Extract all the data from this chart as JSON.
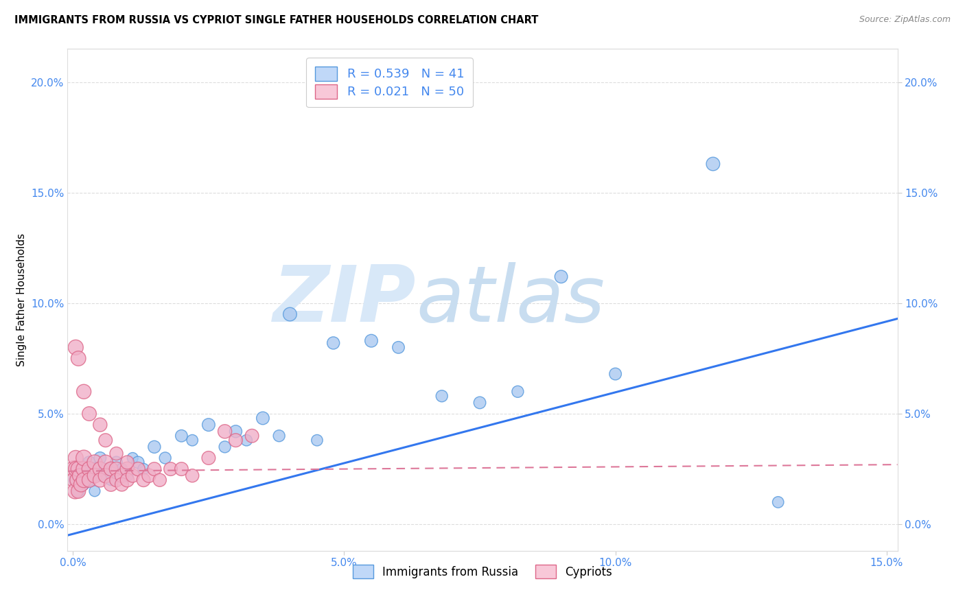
{
  "title": "IMMIGRANTS FROM RUSSIA VS CYPRIOT SINGLE FATHER HOUSEHOLDS CORRELATION CHART",
  "source": "Source: ZipAtlas.com",
  "ylabel": "Single Father Households",
  "xlim": [
    -0.001,
    0.152
  ],
  "ylim": [
    -0.012,
    0.215
  ],
  "xticks": [
    0.0,
    0.05,
    0.1,
    0.15
  ],
  "yticks": [
    0.0,
    0.05,
    0.1,
    0.15,
    0.2
  ],
  "xticklabels": [
    "0.0%",
    "5.0%",
    "10.0%",
    "15.0%"
  ],
  "yticklabels": [
    "0.0%",
    "5.0%",
    "10.0%",
    "15.0%",
    "20.0%"
  ],
  "blue_R": 0.539,
  "blue_N": 41,
  "pink_R": 0.021,
  "pink_N": 50,
  "blue_color": "#aac8f0",
  "blue_edge": "#5599dd",
  "pink_color": "#f0b0c8",
  "pink_edge": "#dd6688",
  "trend_blue": "#3377ee",
  "trend_pink": "#dd7799",
  "legend_blue_fill": "#c0d8f8",
  "legend_pink_fill": "#f8c8d8",
  "blue_scatter_x": [
    0.0005,
    0.001,
    0.0015,
    0.002,
    0.002,
    0.003,
    0.003,
    0.004,
    0.004,
    0.005,
    0.005,
    0.006,
    0.007,
    0.008,
    0.009,
    0.01,
    0.011,
    0.012,
    0.013,
    0.015,
    0.017,
    0.02,
    0.022,
    0.025,
    0.028,
    0.03,
    0.032,
    0.035,
    0.038,
    0.04,
    0.045,
    0.048,
    0.055,
    0.06,
    0.068,
    0.075,
    0.082,
    0.09,
    0.1,
    0.118,
    0.13
  ],
  "blue_scatter_y": [
    0.02,
    0.015,
    0.025,
    0.022,
    0.018,
    0.028,
    0.02,
    0.025,
    0.015,
    0.03,
    0.022,
    0.025,
    0.02,
    0.028,
    0.025,
    0.022,
    0.03,
    0.028,
    0.025,
    0.035,
    0.03,
    0.04,
    0.038,
    0.045,
    0.035,
    0.042,
    0.038,
    0.048,
    0.04,
    0.095,
    0.038,
    0.082,
    0.083,
    0.08,
    0.058,
    0.055,
    0.06,
    0.112,
    0.068,
    0.163,
    0.01
  ],
  "blue_scatter_sizes": [
    200,
    150,
    180,
    160,
    140,
    170,
    150,
    180,
    130,
    160,
    140,
    150,
    130,
    160,
    140,
    150,
    130,
    160,
    140,
    170,
    150,
    160,
    140,
    180,
    150,
    170,
    140,
    180,
    150,
    200,
    140,
    170,
    180,
    160,
    150,
    160,
    150,
    180,
    160,
    200,
    140
  ],
  "pink_scatter_x": [
    0.0002,
    0.0003,
    0.0004,
    0.0005,
    0.0006,
    0.0008,
    0.001,
    0.001,
    0.0012,
    0.0015,
    0.002,
    0.002,
    0.002,
    0.003,
    0.003,
    0.004,
    0.004,
    0.005,
    0.005,
    0.006,
    0.006,
    0.007,
    0.007,
    0.008,
    0.008,
    0.009,
    0.009,
    0.01,
    0.01,
    0.011,
    0.012,
    0.013,
    0.014,
    0.015,
    0.016,
    0.018,
    0.02,
    0.022,
    0.025,
    0.028,
    0.03,
    0.033,
    0.0005,
    0.001,
    0.002,
    0.003,
    0.005,
    0.006,
    0.008,
    0.01
  ],
  "pink_scatter_y": [
    0.025,
    0.02,
    0.015,
    0.03,
    0.025,
    0.02,
    0.015,
    0.025,
    0.022,
    0.018,
    0.025,
    0.02,
    0.03,
    0.025,
    0.02,
    0.028,
    0.022,
    0.025,
    0.02,
    0.028,
    0.022,
    0.025,
    0.018,
    0.025,
    0.02,
    0.022,
    0.018,
    0.025,
    0.02,
    0.022,
    0.025,
    0.02,
    0.022,
    0.025,
    0.02,
    0.025,
    0.025,
    0.022,
    0.03,
    0.042,
    0.038,
    0.04,
    0.08,
    0.075,
    0.06,
    0.05,
    0.045,
    0.038,
    0.032,
    0.028
  ],
  "pink_scatter_sizes": [
    300,
    280,
    260,
    250,
    270,
    240,
    230,
    250,
    220,
    240,
    260,
    250,
    270,
    240,
    230,
    250,
    240,
    230,
    220,
    240,
    230,
    220,
    210,
    220,
    200,
    210,
    200,
    220,
    210,
    200,
    210,
    200,
    210,
    200,
    190,
    200,
    200,
    190,
    200,
    210,
    200,
    200,
    250,
    240,
    230,
    220,
    210,
    200,
    190,
    200
  ],
  "watermark_zip": "ZIP",
  "watermark_atlas": "atlas",
  "watermark_color_zip": "#d8e8f8",
  "watermark_color_atlas": "#c8ddf0",
  "background_color": "#ffffff",
  "grid_color": "#dddddd",
  "tick_color": "#4488ee",
  "blue_trend_x0": 0.0,
  "blue_trend_y0": -0.005,
  "blue_trend_x1": 0.15,
  "blue_trend_y1": 0.093,
  "pink_trend_x0": 0.0,
  "pink_trend_y0": 0.024,
  "pink_trend_x1": 0.15,
  "pink_trend_y1": 0.027
}
